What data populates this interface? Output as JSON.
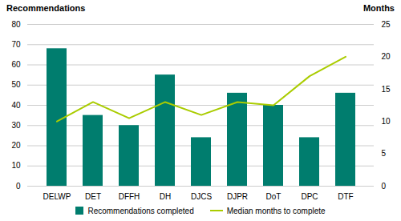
{
  "chart_data": {
    "type": "bar",
    "categories": [
      "DELWP",
      "DET",
      "DFFH",
      "DH",
      "DJCS",
      "DJPR",
      "DoT",
      "DPC",
      "DTF"
    ],
    "series": [
      {
        "name": "Recommendations completed",
        "type": "bar",
        "color": "#007D6E",
        "values": [
          68,
          35,
          30,
          55,
          24,
          46,
          40,
          24,
          46
        ]
      },
      {
        "name": "Median months to complete",
        "type": "line",
        "axis": "y2",
        "color": "#AACC00",
        "values": [
          10,
          13,
          10.5,
          13,
          11,
          13,
          12.5,
          17,
          20
        ]
      }
    ],
    "ylabel": "Recommendations",
    "y2label": "Months",
    "ylim": [
      0,
      80
    ],
    "yticks": [
      0,
      10,
      20,
      30,
      40,
      50,
      60,
      70,
      80
    ],
    "y2lim": [
      0,
      25
    ],
    "y2ticks": [
      0,
      5,
      10,
      15,
      20,
      25
    ],
    "grid": true,
    "legend": "bottom"
  }
}
